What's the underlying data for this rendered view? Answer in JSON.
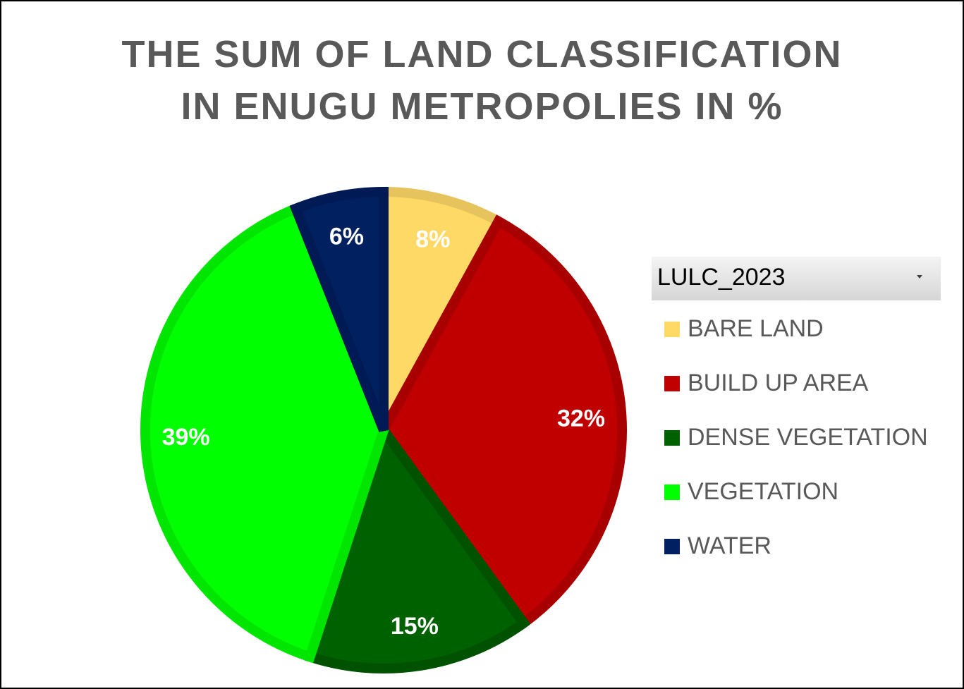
{
  "chart_data": {
    "type": "pie",
    "title_lines": [
      "THE SUM OF LAND CLASSIFICATION",
      "IN ENUGU METROPOLIES IN %"
    ],
    "filter": "LULC_2023",
    "categories": [
      "BARE LAND",
      "BUILD UP AREA",
      "DENSE VEGETATION",
      "VEGETATION",
      "WATER"
    ],
    "values": [
      8,
      32,
      15,
      39,
      6
    ],
    "labels": [
      "8%",
      "32%",
      "15%",
      "39%",
      "6%"
    ],
    "colors": [
      "#ffd966",
      "#c00000",
      "#006100",
      "#00ff00",
      "#002060"
    ],
    "border_colors": [
      "#e6c35c",
      "#a80000",
      "#005200",
      "#00e600",
      "#001a55"
    ],
    "label_colors": [
      "#ffffff",
      "#ffffff",
      "#ffffff",
      "#ffffff",
      "#ffffff"
    ],
    "legend_position": "right"
  }
}
